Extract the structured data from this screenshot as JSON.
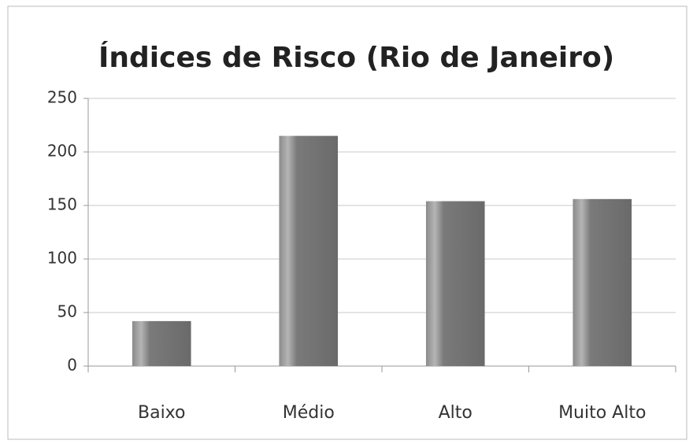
{
  "chart_data": {
    "type": "bar",
    "title": "Índices de Risco (Rio de Janeiro)",
    "categories": [
      "Baixo",
      "Médio",
      "Alto",
      "Muito Alto"
    ],
    "values": [
      42,
      215,
      154,
      156
    ],
    "color": "#6e6e6e",
    "ylim": [
      0,
      250
    ],
    "yticks": [
      0,
      50,
      100,
      150,
      200,
      250
    ],
    "grid": true
  }
}
